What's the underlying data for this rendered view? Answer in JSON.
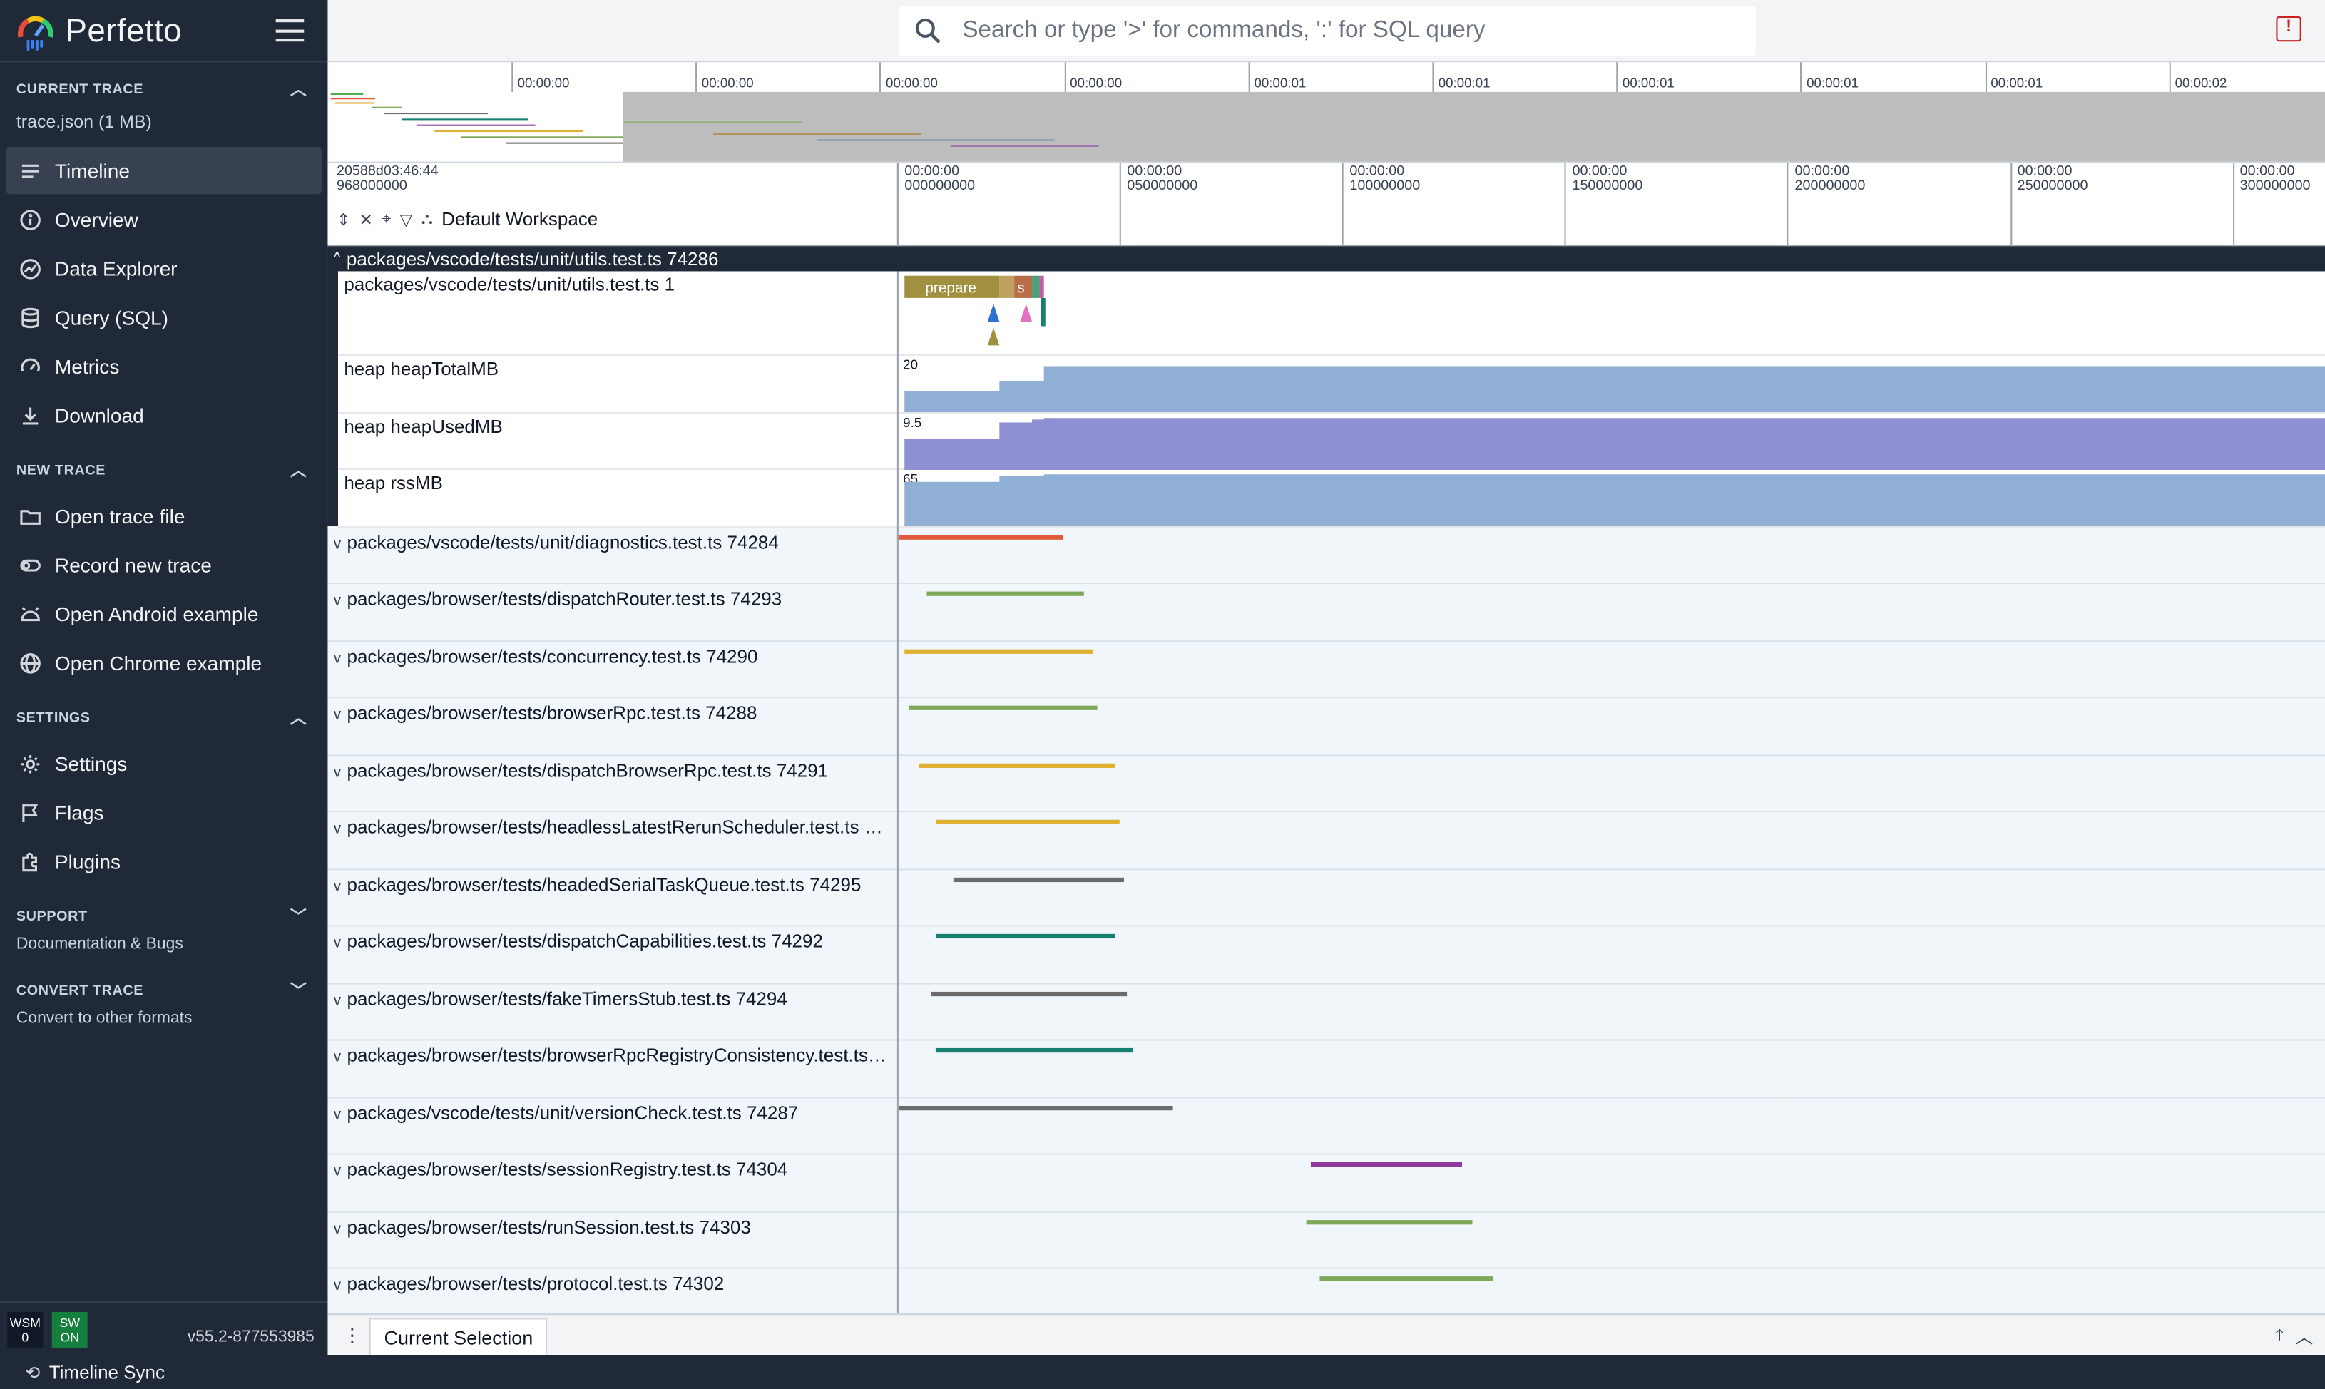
{
  "app": {
    "name": "Perfetto"
  },
  "sidebar": {
    "current_trace": {
      "title": "CURRENT TRACE",
      "file": "trace.json (1 MB)"
    },
    "current_items": [
      {
        "label": "Timeline",
        "icon": "timeline-icon"
      },
      {
        "label": "Overview",
        "icon": "info-icon"
      },
      {
        "label": "Data Explorer",
        "icon": "explore-icon"
      },
      {
        "label": "Query (SQL)",
        "icon": "database-icon"
      },
      {
        "label": "Metrics",
        "icon": "speed-icon"
      },
      {
        "label": "Download",
        "icon": "download-icon"
      }
    ],
    "new_trace": {
      "title": "NEW TRACE"
    },
    "new_items": [
      {
        "label": "Open trace file",
        "icon": "folder-icon"
      },
      {
        "label": "Record new trace",
        "icon": "record-icon"
      },
      {
        "label": "Open Android example",
        "icon": "android-icon"
      },
      {
        "label": "Open Chrome example",
        "icon": "globe-icon"
      }
    ],
    "settings": {
      "title": "SETTINGS"
    },
    "settings_items": [
      {
        "label": "Settings",
        "icon": "gear-icon"
      },
      {
        "label": "Flags",
        "icon": "flag-icon"
      },
      {
        "label": "Plugins",
        "icon": "plugin-icon"
      }
    ],
    "support": {
      "title": "SUPPORT",
      "sub": "Documentation & Bugs"
    },
    "convert": {
      "title": "CONVERT TRACE",
      "sub": "Convert to other formats"
    },
    "footer": {
      "wsm": "WSM",
      "wsm_val": "0",
      "sw": "SW",
      "sw_val": "ON",
      "version": "v55.2-877553985"
    }
  },
  "search": {
    "placeholder": "Search or type '>' for commands, ':' for SQL query"
  },
  "overview_ticks": [
    "00:00:00",
    "00:00:00",
    "00:00:00",
    "00:00:00",
    "00:00:01",
    "00:00:01",
    "00:00:01",
    "00:00:01",
    "00:00:01",
    "00:00:02"
  ],
  "axis": {
    "origin_line1": "20588d03:46:44",
    "origin_line2": "968000000",
    "ticks": [
      {
        "l1": "00:00:00",
        "l2": "000000000"
      },
      {
        "l1": "00:00:00",
        "l2": "050000000"
      },
      {
        "l1": "00:00:00",
        "l2": "100000000"
      },
      {
        "l1": "00:00:00",
        "l2": "150000000"
      },
      {
        "l1": "00:00:00",
        "l2": "200000000"
      },
      {
        "l1": "00:00:00",
        "l2": "250000000"
      },
      {
        "l1": "00:00:00",
        "l2": "300000000"
      }
    ],
    "workspace": "Default Workspace"
  },
  "pinned": {
    "title": "packages/vscode/tests/unit/utils.test.ts 74286",
    "thread_label": "packages/vscode/tests/unit/utils.test.ts 1",
    "slice_prepare": "prepare",
    "slice_s": "s",
    "counters": [
      {
        "label": "heap heapTotalMB",
        "value": "20"
      },
      {
        "label": "heap heapUsedMB",
        "value": "9.5"
      },
      {
        "label": "heap rssMB",
        "value": "65"
      }
    ]
  },
  "tracks": [
    {
      "label": "packages/vscode/tests/unit/diagnostics.test.ts 74284",
      "color": "#e05a3a"
    },
    {
      "label": "packages/browser/tests/dispatchRouter.test.ts 74293",
      "color": "#7fa85a"
    },
    {
      "label": "packages/browser/tests/concurrency.test.ts 74290",
      "color": "#e0b030"
    },
    {
      "label": "packages/browser/tests/browserRpc.test.ts 74288",
      "color": "#7fa85a"
    },
    {
      "label": "packages/browser/tests/dispatchBrowserRpc.test.ts 74291",
      "color": "#e0b030"
    },
    {
      "label": "packages/browser/tests/headlessLatestRerunScheduler.test.ts 7...",
      "color": "#e0b030"
    },
    {
      "label": "packages/browser/tests/headedSerialTaskQueue.test.ts 74295",
      "color": "#6b6b6b"
    },
    {
      "label": "packages/browser/tests/dispatchCapabilities.test.ts 74292",
      "color": "#188070"
    },
    {
      "label": "packages/browser/tests/fakeTimersStub.test.ts 74294",
      "color": "#6b6b6b"
    },
    {
      "label": "packages/browser/tests/browserRpcRegistryConsistency.test.ts ...",
      "color": "#188070"
    },
    {
      "label": "packages/vscode/tests/unit/versionCheck.test.ts 74287",
      "color": "#6b6b6b"
    },
    {
      "label": "packages/browser/tests/sessionRegistry.test.ts 74304",
      "color": "#8e3a9e"
    },
    {
      "label": "packages/browser/tests/runSession.test.ts 74303",
      "color": "#7fa85a"
    },
    {
      "label": "packages/browser/tests/protocol.test.ts 74302",
      "color": "#7fa85a"
    }
  ],
  "bottom": {
    "tab": "Current Selection"
  },
  "status": {
    "label": "Timeline Sync"
  },
  "colors": {
    "sidebar": "#1f2937",
    "heap_total": "#8fb0d4",
    "heap_used": "#8f8fd4",
    "rss": "#8fb0d4"
  }
}
